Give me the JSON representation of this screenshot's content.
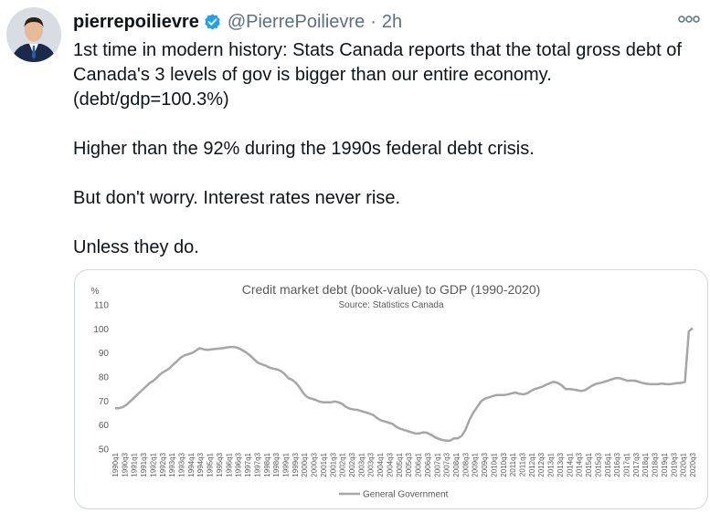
{
  "tweet": {
    "display_name": "pierrepoilievre",
    "handle": "@PierrePoilievre",
    "separator": "·",
    "time": "2h",
    "paragraphs": [
      [
        "1st time in modern history: Stats Canada reports that the total gross debt of",
        "Canada's 3 levels of gov is bigger than our entire economy.",
        "(debt/gdp=100.3%)"
      ],
      [
        "Higher than the 92% during the 1990s federal debt crisis."
      ],
      [
        "But don't worry. Interest rates never rise."
      ],
      [
        "Unless they do."
      ]
    ],
    "icons": {
      "verified": "verified-badge-icon",
      "more": "more-options-icon",
      "avatar": "profile-photo"
    },
    "colors": {
      "verified": "#1da1f2",
      "text": "#0f1419",
      "muted": "#5b7083"
    }
  },
  "chart_data": {
    "type": "line",
    "title": "Credit market debt (book-value) to GDP (1990-2020)",
    "subtitle": "Source: Statistics Canada",
    "ylabel": "%",
    "ylim": [
      50,
      110
    ],
    "yticks": [
      50,
      60,
      70,
      80,
      90,
      100,
      110
    ],
    "grid": false,
    "legend_position": "bottom",
    "x_tick_labels": [
      "1990q1",
      "1990q3",
      "1991q1",
      "1991q3",
      "1992q1",
      "1992q3",
      "1993q1",
      "1993q3",
      "1994q1",
      "1994q3",
      "1995q1",
      "1995q3",
      "1996q1",
      "1996q3",
      "1997q1",
      "1997q3",
      "1998q1",
      "1998q3",
      "1999q1",
      "1999q3",
      "2000q1",
      "2000q3",
      "2001q1",
      "2001q3",
      "2002q1",
      "2002q3",
      "2003q1",
      "2003q3",
      "2004q1",
      "2004q3",
      "2005q1",
      "2005q3",
      "2006q1",
      "2006q3",
      "2007q1",
      "2007q3",
      "2008q1",
      "2008q3",
      "2009q1",
      "2009q3",
      "2010q1",
      "2010q3",
      "2011q1",
      "2011q3",
      "2012q1",
      "2012q3",
      "2013q1",
      "2013q3",
      "2014q1",
      "2014q3",
      "2015q1",
      "2015q3",
      "2016q1",
      "2016q3",
      "2017q1",
      "2017q3",
      "2018q1",
      "2018q3",
      "2019q1",
      "2019q3",
      "2020q1",
      "2020q3"
    ],
    "series": [
      {
        "name": "General Government",
        "color": "#a6a6a6",
        "values": [
          67,
          67,
          67.5,
          68.5,
          70,
          71.5,
          73,
          74.5,
          76,
          77.5,
          78.5,
          80,
          81.5,
          82.5,
          83.5,
          85,
          86.5,
          88,
          89,
          89.5,
          90,
          91,
          92,
          91.5,
          91.3,
          91.5,
          91.7,
          91.8,
          92,
          92.3,
          92.5,
          92.5,
          92,
          91.2,
          90.2,
          89,
          87.5,
          86,
          85.3,
          84.8,
          84,
          83.5,
          83.2,
          82.5,
          81.3,
          79.5,
          78.8,
          77.5,
          75.5,
          73,
          71.5,
          71,
          70.5,
          69.8,
          69.5,
          69.5,
          69.5,
          69.8,
          69.5,
          68.8,
          67.5,
          66.8,
          66.5,
          66.3,
          65.8,
          65.3,
          64.8,
          64.2,
          63,
          62,
          61.5,
          61,
          60.5,
          59.3,
          58.5,
          58,
          57.5,
          57,
          56.5,
          56.5,
          57,
          56.8,
          56,
          55,
          54.3,
          53.8,
          53.5,
          53.5,
          54.5,
          54.5,
          55.5,
          58,
          62,
          65,
          67.5,
          69.8,
          71,
          71.5,
          72,
          72.5,
          72.5,
          72.5,
          72.8,
          73.2,
          73.5,
          73,
          72.8,
          73.2,
          74.2,
          75,
          75.5,
          76,
          76.8,
          77.5,
          78,
          77.5,
          76.5,
          75,
          75,
          74.8,
          74.5,
          74.2,
          74.5,
          75.5,
          76.5,
          77.2,
          77.5,
          78,
          78.5,
          79,
          79.5,
          79.5,
          79,
          78.5,
          78.5,
          78.5,
          78,
          77.5,
          77.2,
          77,
          77,
          77,
          77.3,
          77,
          77,
          77.2,
          77.5,
          77.5,
          78,
          99,
          100.3
        ]
      }
    ]
  }
}
